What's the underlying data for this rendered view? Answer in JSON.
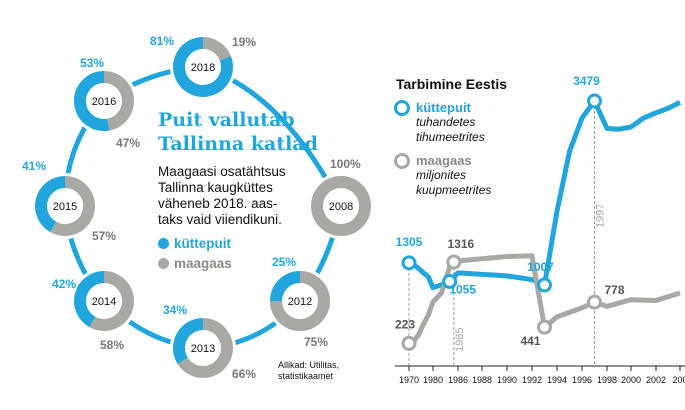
{
  "headline": "Puit vallutab Tallinna katlad",
  "lead": [
    "Maagaasi osatähtsus",
    "Tallinna kaugküttes",
    "väheneb 2018. aas-",
    "taks vaid viiendikuni."
  ],
  "legend_left": {
    "wood": "küttepuit",
    "gas": "maagaas"
  },
  "source": [
    "Allikad: Utilitas,",
    "statistikaamet"
  ],
  "colors": {
    "wood": "#22a5dd",
    "gas": "#a8a8a4"
  },
  "chart_data": [
    {
      "type": "pie",
      "rings": [
        {
          "year": "2013",
          "wood": 34,
          "gas": 66,
          "wood_label": "34%",
          "gas_label": "66%"
        },
        {
          "year": "2014",
          "wood": 42,
          "gas": 58,
          "wood_label": "42%",
          "gas_label": "58%"
        },
        {
          "year": "2015",
          "wood": 41,
          "gas": 57,
          "wood_label": "41%",
          "gas_label": "57%"
        },
        {
          "year": "2016",
          "wood": 53,
          "gas": 47,
          "wood_label": "53%",
          "gas_label": "47%"
        },
        {
          "year": "2018",
          "wood": 81,
          "gas": 19,
          "wood_label": "81%",
          "gas_label": "19%"
        },
        {
          "year": "2008",
          "wood": 0,
          "gas": 100,
          "wood_label": "",
          "gas_label": "100%"
        },
        {
          "year": "2012",
          "wood": 25,
          "gas": 75,
          "wood_label": "25%",
          "gas_label": "75%"
        }
      ]
    },
    {
      "type": "line",
      "title": "Tarbimine Eestis",
      "legend": {
        "wood_name": "küttepuit",
        "wood_units": [
          "tuhandetes",
          "tihumeetrites"
        ],
        "gas_name": "maagaas",
        "gas_units": [
          "miljonites",
          "kuupmeetrites"
        ]
      },
      "xlim": [
        1970,
        2005
      ],
      "ylim": [
        0,
        3800
      ],
      "xticks": [
        "1970",
        "1980",
        "1986",
        "1988",
        "1990",
        "1992",
        "1994",
        "1996",
        "1998",
        "2000",
        "2002",
        "200"
      ],
      "series": [
        {
          "name": "küttepuit",
          "x": [
            1970,
            1972,
            1974,
            1976,
            1978,
            1980,
            1982,
            1984,
            1986,
            1988,
            1990,
            1992,
            1993,
            1994,
            1995,
            1996,
            1997,
            1998,
            1999,
            2000,
            2001,
            2002,
            2003,
            2004
          ],
          "y": [
            1305,
            1280,
            1230,
            1170,
            1120,
            970,
            1010,
            1055,
            1170,
            1150,
            1130,
            1080,
            1007,
            2000,
            2800,
            3250,
            3479,
            3110,
            3100,
            3130,
            3250,
            3320,
            3380,
            3460
          ]
        },
        {
          "name": "maagaas",
          "x": [
            1970,
            1972,
            1974,
            1976,
            1978,
            1980,
            1982,
            1984,
            1985,
            1986,
            1988,
            1990,
            1992,
            1993,
            1994,
            1996,
            1997,
            1998,
            2000,
            2002,
            2004
          ],
          "y": [
            223,
            260,
            340,
            480,
            600,
            780,
            900,
            1250,
            1316,
            1330,
            1360,
            1390,
            1400,
            441,
            580,
            700,
            778,
            720,
            810,
            800,
            900
          ]
        }
      ],
      "annotations": [
        {
          "series": "küttepuit",
          "x": 1970,
          "label": "1305"
        },
        {
          "series": "küttepuit",
          "x": 1984,
          "label": "1055"
        },
        {
          "series": "küttepuit",
          "x": 1993,
          "label": "1007"
        },
        {
          "series": "küttepuit",
          "x": 1997,
          "label": "3479"
        },
        {
          "series": "maagaas",
          "x": 1970,
          "label": "223"
        },
        {
          "series": "maagaas",
          "x": 1985,
          "label": "1316"
        },
        {
          "series": "maagaas",
          "x": 1993,
          "label": "441"
        },
        {
          "series": "maagaas",
          "x": 1997,
          "label": "778"
        }
      ],
      "vertical_notes": [
        {
          "x": 1985,
          "label": "1985"
        },
        {
          "x": 1997,
          "label": "1997"
        }
      ]
    }
  ]
}
